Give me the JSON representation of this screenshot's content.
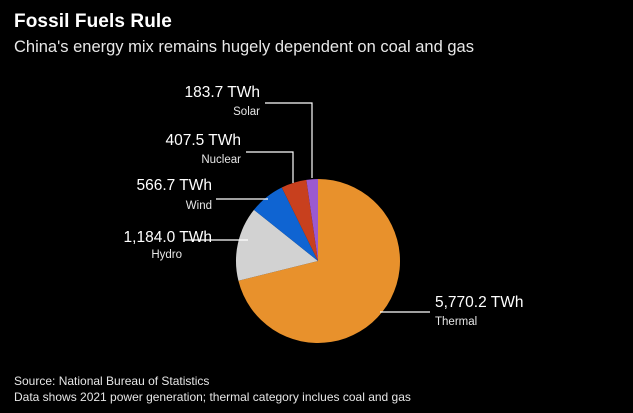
{
  "title": "Fossil Fuels Rule",
  "subtitle": "China's energy mix remains hugely dependent on coal and gas",
  "source": "Source: National Bureau of Statistics",
  "note": "Data shows 2021 power generation; thermal category inclues coal and gas",
  "chart_data": {
    "type": "pie",
    "unit": "TWh",
    "slices": [
      {
        "category": "Thermal",
        "value": 5770.2,
        "value_label": "5,770.2 TWh",
        "color": "#e8912c"
      },
      {
        "category": "Hydro",
        "value": 1184.0,
        "value_label": "1,184.0 TWh",
        "color": "#d2d2d2"
      },
      {
        "category": "Wind",
        "value": 566.7,
        "value_label": "566.7 TWh",
        "color": "#0f64d2"
      },
      {
        "category": "Nuclear",
        "value": 407.5,
        "value_label": "407.5 TWh",
        "color": "#c8401e"
      },
      {
        "category": "Solar",
        "value": 183.7,
        "value_label": "183.7 TWh",
        "color": "#9b59d0"
      }
    ]
  }
}
